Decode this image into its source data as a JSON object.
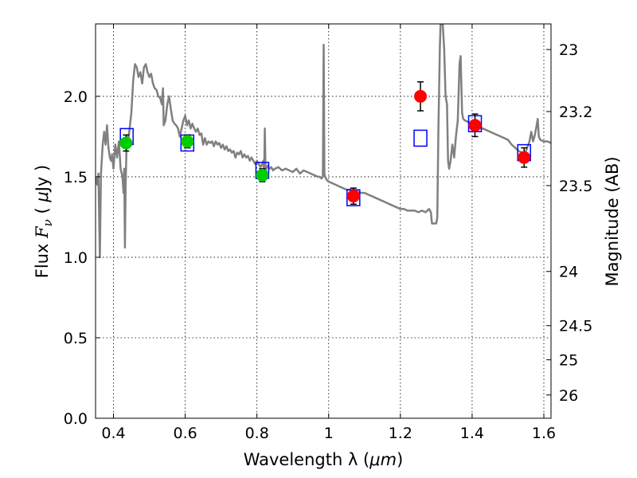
{
  "chart_data": {
    "type": "scatter",
    "xlabel_text": "Wavelength  λ (",
    "xlabel_unit": "μm",
    "xlabel_close": ")",
    "ylabel_text": "Flux  ",
    "ylabel_symbol": "F",
    "ylabel_sub": "ν",
    "ylabel_unit_open": "  (  ",
    "ylabel_unit_mu": "μ",
    "ylabel_unit_rest": "Jy )",
    "y2label": "Magnitude (AB)",
    "xlim": [
      0.35,
      1.62
    ],
    "ylim": [
      0.0,
      2.45
    ],
    "grid": true,
    "xticks": [
      {
        "v": 0.4,
        "label": "0.4"
      },
      {
        "v": 0.6,
        "label": "0.6"
      },
      {
        "v": 0.8,
        "label": "0.8"
      },
      {
        "v": 1.0,
        "label": "1"
      },
      {
        "v": 1.2,
        "label": "1.2"
      },
      {
        "v": 1.4,
        "label": "1.4"
      },
      {
        "v": 1.6,
        "label": "1.6"
      }
    ],
    "yticks": [
      {
        "v": 0.0,
        "label": "0.0"
      },
      {
        "v": 0.5,
        "label": "0.5"
      },
      {
        "v": 1.0,
        "label": "1.0"
      },
      {
        "v": 1.5,
        "label": "1.5"
      },
      {
        "v": 2.0,
        "label": "2.0"
      }
    ],
    "y2ticks": [
      {
        "mag": 23.0,
        "label": "23"
      },
      {
        "mag": 23.2,
        "label": "23.2"
      },
      {
        "mag": 23.5,
        "label": "23.5"
      },
      {
        "mag": 24.0,
        "label": "24"
      },
      {
        "mag": 24.5,
        "label": "24.5"
      },
      {
        "mag": 25.0,
        "label": "25"
      },
      {
        "mag": 26.0,
        "label": "26"
      }
    ],
    "colors": {
      "spectrum": "#808080",
      "model_boxes": "#0000ff",
      "optical_points": "#00cc00",
      "nir_points": "#ff0000",
      "errorbars": "#000000"
    },
    "spectrum": [
      [
        0.35,
        1.5
      ],
      [
        0.355,
        1.45
      ],
      [
        0.358,
        1.52
      ],
      [
        0.362,
        1.0
      ],
      [
        0.365,
        1.52
      ],
      [
        0.37,
        1.7
      ],
      [
        0.374,
        1.78
      ],
      [
        0.378,
        1.7
      ],
      [
        0.382,
        1.82
      ],
      [
        0.386,
        1.68
      ],
      [
        0.39,
        1.62
      ],
      [
        0.393,
        1.6
      ],
      [
        0.396,
        1.64
      ],
      [
        0.4,
        1.55
      ],
      [
        0.405,
        1.7
      ],
      [
        0.41,
        1.62
      ],
      [
        0.415,
        1.72
      ],
      [
        0.42,
        1.55
      ],
      [
        0.425,
        1.5
      ],
      [
        0.428,
        1.4
      ],
      [
        0.43,
        1.55
      ],
      [
        0.432,
        1.06
      ],
      [
        0.434,
        1.45
      ],
      [
        0.437,
        1.75
      ],
      [
        0.441,
        1.72
      ],
      [
        0.445,
        1.8
      ],
      [
        0.45,
        1.9
      ],
      [
        0.455,
        2.1
      ],
      [
        0.46,
        2.2
      ],
      [
        0.465,
        2.18
      ],
      [
        0.47,
        2.12
      ],
      [
        0.475,
        2.15
      ],
      [
        0.48,
        2.08
      ],
      [
        0.485,
        2.18
      ],
      [
        0.49,
        2.2
      ],
      [
        0.495,
        2.15
      ],
      [
        0.5,
        2.12
      ],
      [
        0.505,
        2.14
      ],
      [
        0.51,
        2.08
      ],
      [
        0.515,
        2.05
      ],
      [
        0.52,
        2.04
      ],
      [
        0.525,
        2.0
      ],
      [
        0.53,
        1.99
      ],
      [
        0.535,
        1.95
      ],
      [
        0.538,
        2.05
      ],
      [
        0.54,
        1.82
      ],
      [
        0.545,
        1.85
      ],
      [
        0.55,
        1.95
      ],
      [
        0.555,
        2.0
      ],
      [
        0.56,
        1.92
      ],
      [
        0.565,
        1.85
      ],
      [
        0.57,
        1.83
      ],
      [
        0.575,
        1.82
      ],
      [
        0.58,
        1.8
      ],
      [
        0.585,
        1.75
      ],
      [
        0.59,
        1.8
      ],
      [
        0.595,
        1.85
      ],
      [
        0.6,
        1.88
      ],
      [
        0.605,
        1.82
      ],
      [
        0.61,
        1.85
      ],
      [
        0.615,
        1.8
      ],
      [
        0.62,
        1.83
      ],
      [
        0.625,
        1.8
      ],
      [
        0.63,
        1.78
      ],
      [
        0.635,
        1.8
      ],
      [
        0.64,
        1.76
      ],
      [
        0.645,
        1.77
      ],
      [
        0.65,
        1.7
      ],
      [
        0.655,
        1.74
      ],
      [
        0.66,
        1.7
      ],
      [
        0.665,
        1.72
      ],
      [
        0.67,
        1.71
      ],
      [
        0.675,
        1.72
      ],
      [
        0.68,
        1.69
      ],
      [
        0.685,
        1.72
      ],
      [
        0.69,
        1.7
      ],
      [
        0.695,
        1.71
      ],
      [
        0.7,
        1.68
      ],
      [
        0.705,
        1.7
      ],
      [
        0.71,
        1.67
      ],
      [
        0.715,
        1.69
      ],
      [
        0.72,
        1.66
      ],
      [
        0.725,
        1.67
      ],
      [
        0.73,
        1.65
      ],
      [
        0.735,
        1.66
      ],
      [
        0.74,
        1.62
      ],
      [
        0.745,
        1.65
      ],
      [
        0.75,
        1.64
      ],
      [
        0.755,
        1.66
      ],
      [
        0.76,
        1.62
      ],
      [
        0.765,
        1.64
      ],
      [
        0.77,
        1.62
      ],
      [
        0.775,
        1.63
      ],
      [
        0.78,
        1.6
      ],
      [
        0.785,
        1.62
      ],
      [
        0.79,
        1.6
      ],
      [
        0.795,
        1.58
      ],
      [
        0.8,
        1.6
      ],
      [
        0.805,
        1.58
      ],
      [
        0.81,
        1.56
      ],
      [
        0.815,
        1.58
      ],
      [
        0.818,
        1.6
      ],
      [
        0.82,
        1.5
      ],
      [
        0.822,
        1.8
      ],
      [
        0.824,
        1.52
      ],
      [
        0.826,
        1.55
      ],
      [
        0.83,
        1.57
      ],
      [
        0.835,
        1.55
      ],
      [
        0.84,
        1.56
      ],
      [
        0.845,
        1.54
      ],
      [
        0.85,
        1.55
      ],
      [
        0.86,
        1.56
      ],
      [
        0.87,
        1.54
      ],
      [
        0.88,
        1.55
      ],
      [
        0.89,
        1.54
      ],
      [
        0.9,
        1.53
      ],
      [
        0.91,
        1.55
      ],
      [
        0.92,
        1.52
      ],
      [
        0.93,
        1.54
      ],
      [
        0.94,
        1.53
      ],
      [
        0.95,
        1.52
      ],
      [
        0.96,
        1.51
      ],
      [
        0.97,
        1.5
      ],
      [
        0.975,
        1.5
      ],
      [
        0.98,
        1.49
      ],
      [
        0.984,
        1.5
      ],
      [
        0.986,
        2.32
      ],
      [
        0.988,
        1.52
      ],
      [
        0.99,
        1.5
      ],
      [
        0.995,
        1.48
      ],
      [
        1.0,
        1.47
      ],
      [
        1.01,
        1.46
      ],
      [
        1.02,
        1.45
      ],
      [
        1.03,
        1.44
      ],
      [
        1.04,
        1.43
      ],
      [
        1.05,
        1.42
      ],
      [
        1.06,
        1.42
      ],
      [
        1.07,
        1.41
      ],
      [
        1.08,
        1.41
      ],
      [
        1.09,
        1.4
      ],
      [
        1.1,
        1.4
      ],
      [
        1.11,
        1.39
      ],
      [
        1.12,
        1.38
      ],
      [
        1.13,
        1.37
      ],
      [
        1.14,
        1.36
      ],
      [
        1.15,
        1.35
      ],
      [
        1.16,
        1.34
      ],
      [
        1.17,
        1.33
      ],
      [
        1.18,
        1.32
      ],
      [
        1.19,
        1.31
      ],
      [
        1.2,
        1.3
      ],
      [
        1.21,
        1.3
      ],
      [
        1.22,
        1.29
      ],
      [
        1.23,
        1.29
      ],
      [
        1.24,
        1.29
      ],
      [
        1.25,
        1.28
      ],
      [
        1.26,
        1.29
      ],
      [
        1.27,
        1.28
      ],
      [
        1.275,
        1.29
      ],
      [
        1.28,
        1.3
      ],
      [
        1.285,
        1.28
      ],
      [
        1.288,
        1.21
      ],
      [
        1.3,
        1.21
      ],
      [
        1.303,
        1.25
      ],
      [
        1.306,
        1.8
      ],
      [
        1.31,
        2.3
      ],
      [
        1.312,
        2.45
      ],
      [
        1.318,
        2.45
      ],
      [
        1.322,
        2.3
      ],
      [
        1.326,
        2.0
      ],
      [
        1.33,
        1.95
      ],
      [
        1.333,
        1.6
      ],
      [
        1.336,
        1.55
      ],
      [
        1.34,
        1.6
      ],
      [
        1.345,
        1.7
      ],
      [
        1.35,
        1.62
      ],
      [
        1.355,
        1.75
      ],
      [
        1.36,
        1.85
      ],
      [
        1.365,
        2.2
      ],
      [
        1.368,
        2.25
      ],
      [
        1.372,
        1.9
      ],
      [
        1.375,
        1.86
      ],
      [
        1.38,
        1.85
      ],
      [
        1.39,
        1.84
      ],
      [
        1.4,
        1.83
      ],
      [
        1.41,
        1.82
      ],
      [
        1.42,
        1.8
      ],
      [
        1.43,
        1.8
      ],
      [
        1.44,
        1.79
      ],
      [
        1.45,
        1.78
      ],
      [
        1.46,
        1.77
      ],
      [
        1.47,
        1.76
      ],
      [
        1.48,
        1.75
      ],
      [
        1.49,
        1.74
      ],
      [
        1.5,
        1.73
      ],
      [
        1.51,
        1.7
      ],
      [
        1.52,
        1.68
      ],
      [
        1.53,
        1.66
      ],
      [
        1.54,
        1.65
      ],
      [
        1.545,
        1.63
      ],
      [
        1.55,
        1.66
      ],
      [
        1.56,
        1.72
      ],
      [
        1.565,
        1.78
      ],
      [
        1.57,
        1.72
      ],
      [
        1.575,
        1.76
      ],
      [
        1.58,
        1.82
      ],
      [
        1.583,
        1.86
      ],
      [
        1.586,
        1.75
      ],
      [
        1.59,
        1.73
      ],
      [
        1.6,
        1.72
      ],
      [
        1.61,
        1.72
      ],
      [
        1.62,
        1.71
      ]
    ],
    "model_boxes": [
      {
        "x": 0.437,
        "y": 1.75
      },
      {
        "x": 0.606,
        "y": 1.71
      },
      {
        "x": 0.815,
        "y": 1.54
      },
      {
        "x": 1.069,
        "y": 1.37
      },
      {
        "x": 1.256,
        "y": 1.74
      },
      {
        "x": 1.408,
        "y": 1.83
      },
      {
        "x": 1.545,
        "y": 1.65
      }
    ],
    "optical_points": [
      {
        "x": 0.435,
        "y": 1.71,
        "err": 0.05
      },
      {
        "x": 0.606,
        "y": 1.72,
        "err": 0.04
      },
      {
        "x": 0.815,
        "y": 1.51,
        "err": 0.04
      }
    ],
    "nir_points": [
      {
        "x": 1.069,
        "y": 1.38,
        "err": 0.05
      },
      {
        "x": 1.256,
        "y": 2.0,
        "err": 0.09
      },
      {
        "x": 1.408,
        "y": 1.82,
        "err": 0.07
      },
      {
        "x": 1.545,
        "y": 1.62,
        "err": 0.06
      }
    ]
  }
}
